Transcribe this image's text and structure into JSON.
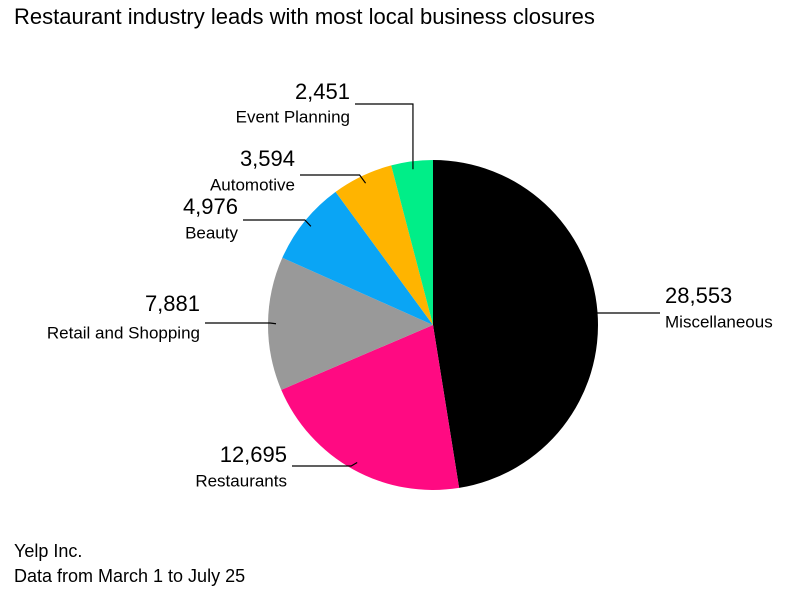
{
  "chart_data": {
    "type": "pie",
    "title": "Restaurant industry leads with most local business closures",
    "categories": [
      "Miscellaneous",
      "Restaurants",
      "Retail and Shopping",
      "Beauty",
      "Automotive",
      "Event Planning"
    ],
    "values": [
      28553,
      12695,
      7881,
      4976,
      3594,
      2451
    ],
    "value_labels": [
      "28,553",
      "12,695",
      "7,881",
      "4,976",
      "3,594",
      "2,451"
    ],
    "colors": [
      "#000000",
      "#ff0a82",
      "#999999",
      "#0aa5f5",
      "#ffb400",
      "#00ee88"
    ],
    "source": "Yelp Inc.",
    "note": "Data from March 1 to July 25"
  }
}
